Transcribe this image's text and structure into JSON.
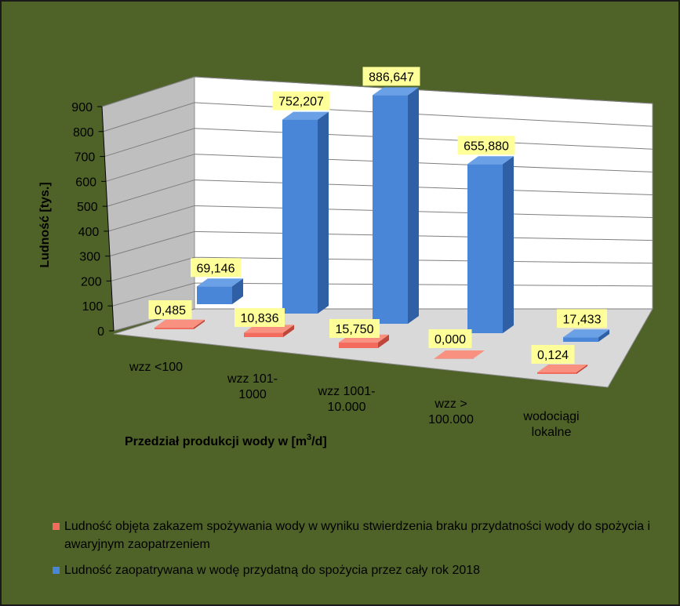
{
  "colors": {
    "background": "#4f6228",
    "series_red": "#f26b5c",
    "series_blue": "#4a86d8",
    "label_bg": "#ffff99"
  },
  "chart_data": {
    "type": "bar",
    "subtype": "3d-column",
    "categories": [
      "wzz <100",
      "wzz 101-\n1000",
      "wzz 1001-\n10.000",
      "wzz >\n100.000",
      "wodociągi\nlokalne"
    ],
    "series": [
      {
        "name": "Ludność objęta zakazem spożywania wody w wyniku stwierdzenia braku przydatności wody do spożycia i awaryjnym zaopatrzeniem",
        "values": [
          0.485,
          10.836,
          15.75,
          0.0,
          0.124
        ],
        "labels": [
          "0,485",
          "10,836",
          "15,750",
          "0,000",
          "0,124"
        ],
        "color": "#f26b5c"
      },
      {
        "name": "Ludność zaopatrywana w wodę przydatną do spożycia przez cały rok 2018",
        "values": [
          69.146,
          752.207,
          886.647,
          655.88,
          17.433
        ],
        "labels": [
          "69,146",
          "752,207",
          "886,647",
          "655,880",
          "17,433"
        ],
        "color": "#4a86d8"
      }
    ],
    "y_ticks": [
      "0",
      "100",
      "200",
      "300",
      "400",
      "500",
      "600",
      "700",
      "800",
      "900"
    ],
    "ylim": [
      0,
      900
    ],
    "ylabel": "Ludność [tys.]",
    "xlabel_main": "Przedział produkcji wody w [m",
    "xlabel_sup": "3",
    "xlabel_end": "/d]",
    "grid": true,
    "legend_position": "bottom"
  }
}
